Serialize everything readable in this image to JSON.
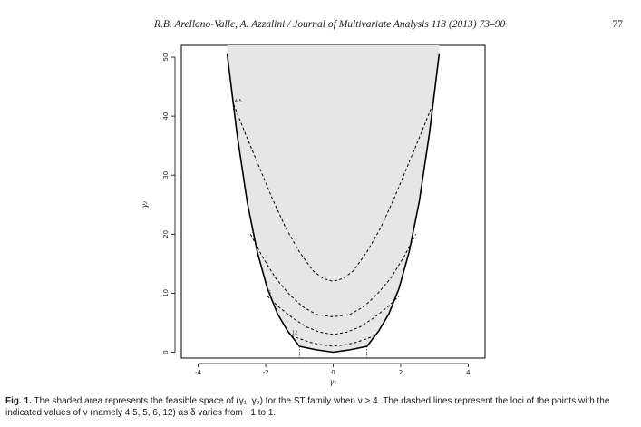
{
  "running_head": {
    "authors": "R.B. Arellano-Valle, A. Azzalini / Journal of Multivariate Analysis 113 (2013) 73–90",
    "page_number": "77"
  },
  "figure": {
    "chart_data": {
      "type": "line",
      "xlabel": "γ₁",
      "ylabel": "γ₂",
      "xlim": [
        -4.5,
        4.5
      ],
      "ylim": [
        -1,
        52
      ],
      "x_ticks": [
        "-4",
        "-2",
        "0",
        "2",
        "4"
      ],
      "y_ticks": [
        "0",
        "10",
        "20",
        "30",
        "40",
        "50"
      ],
      "shaded_region": {
        "name": "feasible space",
        "fill": "#e6e6e6",
        "lower_boundary": {
          "x": [
            -3.14,
            -2.85,
            -2.55,
            -2.25,
            -1.95,
            -1.65,
            -1.35,
            -1.0,
            -0.5,
            0.0,
            0.5,
            1.0,
            1.35,
            1.65,
            1.95,
            2.25,
            2.55,
            2.85,
            3.14
          ],
          "y": [
            50.5,
            37.0,
            25.5,
            17.0,
            10.8,
            6.5,
            3.6,
            1.0,
            0.4,
            0.0,
            0.4,
            1.0,
            3.6,
            6.5,
            10.8,
            17.0,
            25.5,
            37.0,
            50.5
          ]
        }
      },
      "series": [
        {
          "label": "4.5",
          "x": [
            -2.95,
            -2.6,
            -2.2,
            -1.8,
            -1.4,
            -1.0,
            -0.6,
            -0.3,
            0.0,
            0.3,
            0.6,
            1.0,
            1.4,
            1.8,
            2.2,
            2.6,
            2.95
          ],
          "y": [
            42.0,
            37.0,
            31.5,
            26.0,
            21.0,
            17.0,
            13.8,
            12.5,
            12.0,
            12.5,
            13.8,
            17.0,
            21.0,
            26.0,
            31.5,
            37.0,
            42.0
          ]
        },
        {
          "label": "5",
          "x": [
            -2.45,
            -2.1,
            -1.7,
            -1.3,
            -0.9,
            -0.5,
            0.0,
            0.5,
            0.9,
            1.3,
            1.7,
            2.1,
            2.45
          ],
          "y": [
            20.0,
            16.2,
            12.5,
            9.8,
            7.7,
            6.4,
            6.0,
            6.4,
            7.7,
            9.8,
            12.5,
            16.2,
            20.0
          ]
        },
        {
          "label": "6",
          "x": [
            -1.95,
            -1.6,
            -1.2,
            -0.8,
            -0.4,
            0.0,
            0.4,
            0.8,
            1.2,
            1.6,
            1.95
          ],
          "y": [
            9.5,
            7.6,
            5.8,
            4.3,
            3.4,
            3.0,
            3.4,
            4.3,
            5.8,
            7.6,
            9.5
          ]
        },
        {
          "label": "12",
          "x": [
            -1.25,
            -1.0,
            -0.7,
            -0.4,
            0.0,
            0.4,
            0.7,
            1.0,
            1.25
          ],
          "y": [
            2.8,
            2.3,
            1.7,
            1.3,
            1.0,
            1.3,
            1.7,
            2.3,
            2.8
          ]
        }
      ],
      "vertical_markers": [
        -1,
        1
      ],
      "grid": false
    }
  },
  "caption": {
    "label": "Fig. 1.",
    "text": "The shaded area represents the feasible space of (γ₁, γ₂) for the ST family when ν > 4. The dashed lines represent the loci of the points with the indicated values of ν (namely 4.5, 5, 6, 12) as δ varies from −1 to 1."
  }
}
